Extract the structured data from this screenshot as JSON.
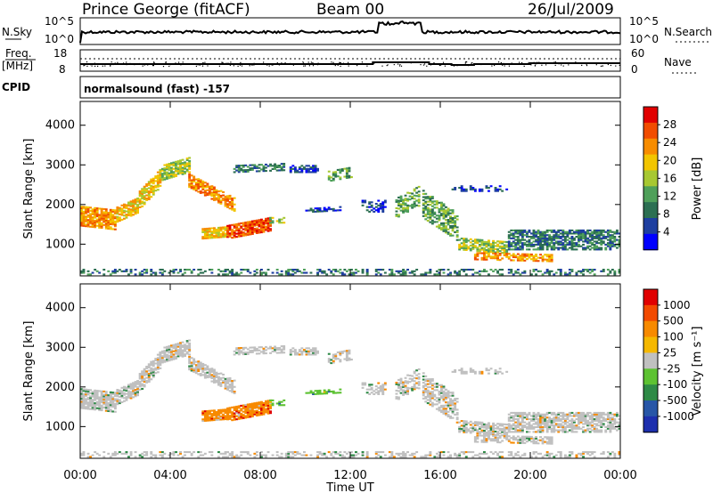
{
  "header": {
    "station": "Prince George (fitACF)",
    "beam": "Beam 00",
    "date": "26/Jul/2009"
  },
  "top_panels": {
    "nsky_label": "N.Sky",
    "nsearch_label": "N.Search",
    "nsky_ticks": [
      "10^5",
      "10^0"
    ],
    "nsearch_ticks": [
      "10^5",
      "10^0"
    ],
    "freq_label_line1": "Freq.",
    "freq_label_line2": "[MHz]",
    "freq_ticks": [
      "18",
      "8"
    ],
    "nave_label": "Nave",
    "nave_ticks": [
      "60",
      "0"
    ],
    "cpid_label": "CPID",
    "cpid_text": "normalsound (fast) -157"
  },
  "chart_data": [
    {
      "type": "heatmap",
      "ylabel": "Slant Range [km]",
      "xlabel": "Time UT",
      "x_ticks": [
        "00:00",
        "04:00",
        "08:00",
        "12:00",
        "16:00",
        "20:00",
        "00:00"
      ],
      "xlim_hours": [
        0,
        24
      ],
      "y_ticks": [
        1000,
        2000,
        3000,
        4000
      ],
      "ylim": [
        200,
        4600
      ],
      "colorbar_label": "Power [dB]",
      "colorbar_ticks": [
        "28",
        "24",
        "20",
        "16",
        "12",
        "8",
        "4"
      ],
      "colors": [
        "#0000ff",
        "#1e3fa0",
        "#2c6f52",
        "#4fa05a",
        "#a7c832",
        "#f2c500",
        "#f78c00",
        "#f14c00",
        "#e10000"
      ]
    },
    {
      "type": "heatmap",
      "ylabel": "Slant Range [km]",
      "xlabel": "Time UT",
      "x_ticks": [
        "00:00",
        "04:00",
        "08:00",
        "12:00",
        "16:00",
        "20:00",
        "00:00"
      ],
      "xlim_hours": [
        0,
        24
      ],
      "y_ticks": [
        1000,
        2000,
        3000,
        4000
      ],
      "ylim": [
        200,
        4600
      ],
      "colorbar_label": "Velocity [m s⁻¹]",
      "colorbar_ticks": [
        "1000",
        "500",
        "100",
        "25",
        "-25",
        "-100",
        "-500",
        "-1000"
      ],
      "colors": [
        "#1d2fae",
        "#2756a7",
        "#2e8a46",
        "#5dc232",
        "#c0c0c0",
        "#f5b800",
        "#f78a00",
        "#f24a00",
        "#e00000"
      ]
    }
  ]
}
